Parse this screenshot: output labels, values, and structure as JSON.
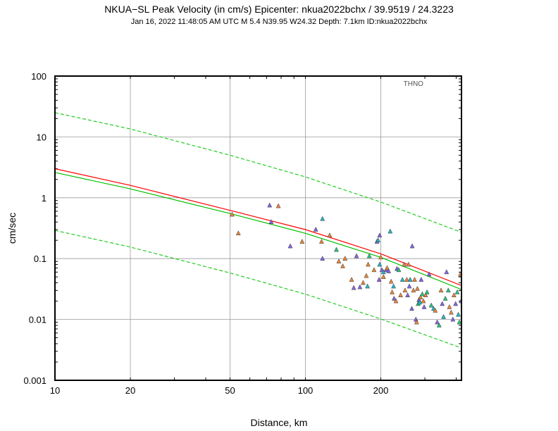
{
  "chart_data": {
    "type": "scatter",
    "title": "NKUA−SL Peak Velocity (in cm/s) Epicenter: nkua2022bchx / 39.9519 / 24.3223",
    "subtitle": "Jan 16, 2022 11:48:05 AM UTC   M 5.4   N39.95 W24.32   Depth: 7.1km   ID:nkua2022bchx",
    "xlabel": "Distance, km",
    "ylabel": "cm/sec",
    "xscale": "log",
    "yscale": "log",
    "xlim": [
      10,
      420
    ],
    "ylim": [
      0.001,
      100
    ],
    "grid": true,
    "x_ticks": [
      {
        "value": 10,
        "label": "10"
      },
      {
        "value": 20,
        "label": "20"
      },
      {
        "value": 50,
        "label": "50"
      },
      {
        "value": 100,
        "label": "100"
      },
      {
        "value": 200,
        "label": "200"
      }
    ],
    "y_ticks": [
      {
        "value": 0.001,
        "label": "0.001"
      },
      {
        "value": 0.01,
        "label": "0.01"
      },
      {
        "value": 0.1,
        "label": "0.1"
      },
      {
        "value": 1,
        "label": "1"
      },
      {
        "value": 10,
        "label": "10"
      },
      {
        "value": 100,
        "label": "100"
      }
    ],
    "station_label": {
      "text": "THNO",
      "x": 270,
      "y": 75
    },
    "curves": [
      {
        "color": "#ff0000",
        "dash": false,
        "points": [
          [
            10,
            3.0
          ],
          [
            20,
            1.6
          ],
          [
            50,
            0.62
          ],
          [
            100,
            0.3
          ],
          [
            200,
            0.12
          ],
          [
            420,
            0.036
          ]
        ]
      },
      {
        "color": "#00c000",
        "dash": false,
        "points": [
          [
            10,
            2.6
          ],
          [
            20,
            1.4
          ],
          [
            50,
            0.55
          ],
          [
            100,
            0.26
          ],
          [
            200,
            0.105
          ],
          [
            420,
            0.031
          ]
        ]
      },
      {
        "color": "#22cc22",
        "dash": true,
        "points": [
          [
            10,
            25
          ],
          [
            20,
            13.5
          ],
          [
            50,
            5.0
          ],
          [
            100,
            2.2
          ],
          [
            200,
            0.85
          ],
          [
            420,
            0.27
          ]
        ]
      },
      {
        "color": "#22cc22",
        "dash": true,
        "points": [
          [
            10,
            0.29
          ],
          [
            20,
            0.155
          ],
          [
            50,
            0.058
          ],
          [
            100,
            0.026
          ],
          [
            200,
            0.0102
          ],
          [
            420,
            0.0034
          ]
        ]
      }
    ],
    "points": [
      {
        "x": 51,
        "y": 0.53,
        "c": "#e8863c"
      },
      {
        "x": 54,
        "y": 0.26,
        "c": "#e8863c"
      },
      {
        "x": 72,
        "y": 0.75,
        "c": "#8466e0"
      },
      {
        "x": 78,
        "y": 0.73,
        "c": "#e8863c"
      },
      {
        "x": 73,
        "y": 0.4,
        "c": "#8466e0"
      },
      {
        "x": 87,
        "y": 0.16,
        "c": "#8466e0"
      },
      {
        "x": 97,
        "y": 0.19,
        "c": "#e8863c"
      },
      {
        "x": 110,
        "y": 0.3,
        "c": "#8466e0"
      },
      {
        "x": 117,
        "y": 0.45,
        "c": "#26b4c4"
      },
      {
        "x": 116,
        "y": 0.19,
        "c": "#e8863c"
      },
      {
        "x": 125,
        "y": 0.24,
        "c": "#e8863c"
      },
      {
        "x": 117,
        "y": 0.1,
        "c": "#8466e0"
      },
      {
        "x": 133,
        "y": 0.14,
        "c": "#26c480"
      },
      {
        "x": 136,
        "y": 0.09,
        "c": "#e8863c"
      },
      {
        "x": 144,
        "y": 0.1,
        "c": "#e8863c"
      },
      {
        "x": 141,
        "y": 0.075,
        "c": "#e8863c"
      },
      {
        "x": 153,
        "y": 0.045,
        "c": "#e8863c"
      },
      {
        "x": 156,
        "y": 0.033,
        "c": "#8466e0"
      },
      {
        "x": 160,
        "y": 0.11,
        "c": "#8466e0"
      },
      {
        "x": 165,
        "y": 0.034,
        "c": "#8466e0"
      },
      {
        "x": 170,
        "y": 0.04,
        "c": "#e8863c"
      },
      {
        "x": 175,
        "y": 0.052,
        "c": "#e8863c"
      },
      {
        "x": 177,
        "y": 0.035,
        "c": "#26b4c4"
      },
      {
        "x": 178,
        "y": 0.08,
        "c": "#e8863c"
      },
      {
        "x": 180,
        "y": 0.11,
        "c": "#26c480"
      },
      {
        "x": 188,
        "y": 0.065,
        "c": "#e8863c"
      },
      {
        "x": 193,
        "y": 0.19,
        "c": "#8466e0"
      },
      {
        "x": 198,
        "y": 0.24,
        "c": "#8466e0"
      },
      {
        "x": 195,
        "y": 0.2,
        "c": "#26b4c4"
      },
      {
        "x": 198,
        "y": 0.08,
        "c": "#26b4c4"
      },
      {
        "x": 200,
        "y": 0.105,
        "c": "#e8863c"
      },
      {
        "x": 202,
        "y": 0.065,
        "c": "#8466e0"
      },
      {
        "x": 205,
        "y": 0.06,
        "c": "#26b4c4"
      },
      {
        "x": 197,
        "y": 0.045,
        "c": "#8466e0"
      },
      {
        "x": 205,
        "y": 0.05,
        "c": "#e8863c"
      },
      {
        "x": 210,
        "y": 0.065,
        "c": "#8466e0"
      },
      {
        "x": 212,
        "y": 0.07,
        "c": "#e8863c"
      },
      {
        "x": 215,
        "y": 0.062,
        "c": "#8466e0"
      },
      {
        "x": 218,
        "y": 0.28,
        "c": "#26b4c4"
      },
      {
        "x": 220,
        "y": 0.042,
        "c": "#e8863c"
      },
      {
        "x": 225,
        "y": 0.035,
        "c": "#26b4c4"
      },
      {
        "x": 222,
        "y": 0.028,
        "c": "#e8863c"
      },
      {
        "x": 226,
        "y": 0.022,
        "c": "#8466e0"
      },
      {
        "x": 230,
        "y": 0.02,
        "c": "#e8863c"
      },
      {
        "x": 232,
        "y": 0.068,
        "c": "#8466e0"
      },
      {
        "x": 236,
        "y": 0.065,
        "c": "#26c480"
      },
      {
        "x": 240,
        "y": 0.025,
        "c": "#e8863c"
      },
      {
        "x": 244,
        "y": 0.045,
        "c": "#26b4c4"
      },
      {
        "x": 248,
        "y": 0.08,
        "c": "#e8863c"
      },
      {
        "x": 250,
        "y": 0.03,
        "c": "#e8863c"
      },
      {
        "x": 254,
        "y": 0.045,
        "c": "#e8863c"
      },
      {
        "x": 256,
        "y": 0.025,
        "c": "#8466e0"
      },
      {
        "x": 258,
        "y": 0.08,
        "c": "#e8863c"
      },
      {
        "x": 260,
        "y": 0.035,
        "c": "#8466e0"
      },
      {
        "x": 262,
        "y": 0.045,
        "c": "#26b4c4"
      },
      {
        "x": 266,
        "y": 0.015,
        "c": "#8466e0"
      },
      {
        "x": 267,
        "y": 0.16,
        "c": "#8466e0"
      },
      {
        "x": 270,
        "y": 0.03,
        "c": "#e8863c"
      },
      {
        "x": 273,
        "y": 0.045,
        "c": "#e8863c"
      },
      {
        "x": 276,
        "y": 0.01,
        "c": "#8466e0"
      },
      {
        "x": 278,
        "y": 0.009,
        "c": "#e8863c"
      },
      {
        "x": 280,
        "y": 0.032,
        "c": "#e8863c"
      },
      {
        "x": 282,
        "y": 0.018,
        "c": "#26c480"
      },
      {
        "x": 284,
        "y": 0.021,
        "c": "#8466e0"
      },
      {
        "x": 286,
        "y": 0.019,
        "c": "#26b4c4"
      },
      {
        "x": 288,
        "y": 0.023,
        "c": "#e8863c"
      },
      {
        "x": 290,
        "y": 0.045,
        "c": "#8466e0"
      },
      {
        "x": 293,
        "y": 0.026,
        "c": "#26c480"
      },
      {
        "x": 296,
        "y": 0.02,
        "c": "#e8863c"
      },
      {
        "x": 298,
        "y": 0.016,
        "c": "#8466e0"
      },
      {
        "x": 302,
        "y": 0.025,
        "c": "#e8863c"
      },
      {
        "x": 306,
        "y": 0.028,
        "c": "#26c480"
      },
      {
        "x": 312,
        "y": 0.055,
        "c": "#8466e0"
      },
      {
        "x": 318,
        "y": 0.017,
        "c": "#26c480"
      },
      {
        "x": 325,
        "y": 0.015,
        "c": "#26b4c4"
      },
      {
        "x": 330,
        "y": 0.014,
        "c": "#e8863c"
      },
      {
        "x": 336,
        "y": 0.009,
        "c": "#8466e0"
      },
      {
        "x": 342,
        "y": 0.008,
        "c": "#26c480"
      },
      {
        "x": 348,
        "y": 0.03,
        "c": "#e8863c"
      },
      {
        "x": 352,
        "y": 0.018,
        "c": "#8466e0"
      },
      {
        "x": 356,
        "y": 0.011,
        "c": "#26b4c4"
      },
      {
        "x": 362,
        "y": 0.022,
        "c": "#26c480"
      },
      {
        "x": 366,
        "y": 0.06,
        "c": "#8466e0"
      },
      {
        "x": 372,
        "y": 0.03,
        "c": "#26c480"
      },
      {
        "x": 376,
        "y": 0.016,
        "c": "#e8863c"
      },
      {
        "x": 382,
        "y": 0.013,
        "c": "#e8863c"
      },
      {
        "x": 388,
        "y": 0.01,
        "c": "#8466e0"
      },
      {
        "x": 392,
        "y": 0.025,
        "c": "#e8863c"
      },
      {
        "x": 398,
        "y": 0.018,
        "c": "#8466e0"
      },
      {
        "x": 404,
        "y": 0.028,
        "c": "#26c480"
      },
      {
        "x": 408,
        "y": 0.012,
        "c": "#26b4c4"
      },
      {
        "x": 412,
        "y": 0.009,
        "c": "#26c480"
      },
      {
        "x": 416,
        "y": 0.055,
        "c": "#e8863c"
      },
      {
        "x": 419,
        "y": 0.02,
        "c": "#8466e0"
      }
    ]
  }
}
